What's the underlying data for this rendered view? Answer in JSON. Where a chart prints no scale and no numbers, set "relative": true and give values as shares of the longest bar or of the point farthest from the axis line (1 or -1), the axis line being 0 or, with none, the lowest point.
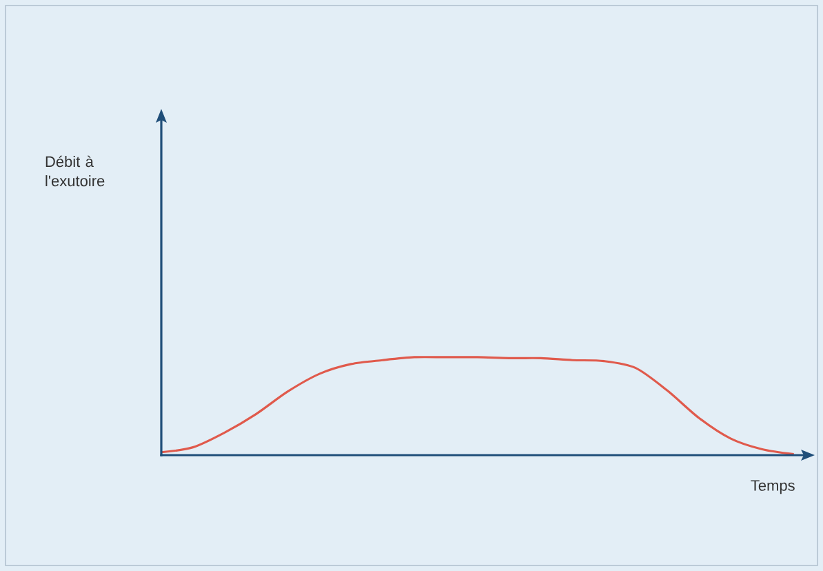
{
  "chart_data": {
    "type": "line",
    "relative": true,
    "xlabel": "Temps",
    "annotations": [
      "Débit à l'exutoire"
    ],
    "color": "#e05a4c",
    "categories": [
      null,
      null,
      null,
      null,
      null,
      null,
      null,
      null,
      null,
      null,
      null,
      null,
      null,
      null,
      null,
      null,
      null,
      null,
      null,
      null,
      null
    ],
    "values": [
      0.03,
      0.08,
      0.23,
      0.42,
      0.65,
      0.83,
      0.93,
      0.97,
      1.0,
      1.0,
      1.0,
      0.99,
      0.99,
      0.97,
      0.96,
      0.89,
      0.66,
      0.38,
      0.17,
      0.06,
      0.01
    ]
  }
}
